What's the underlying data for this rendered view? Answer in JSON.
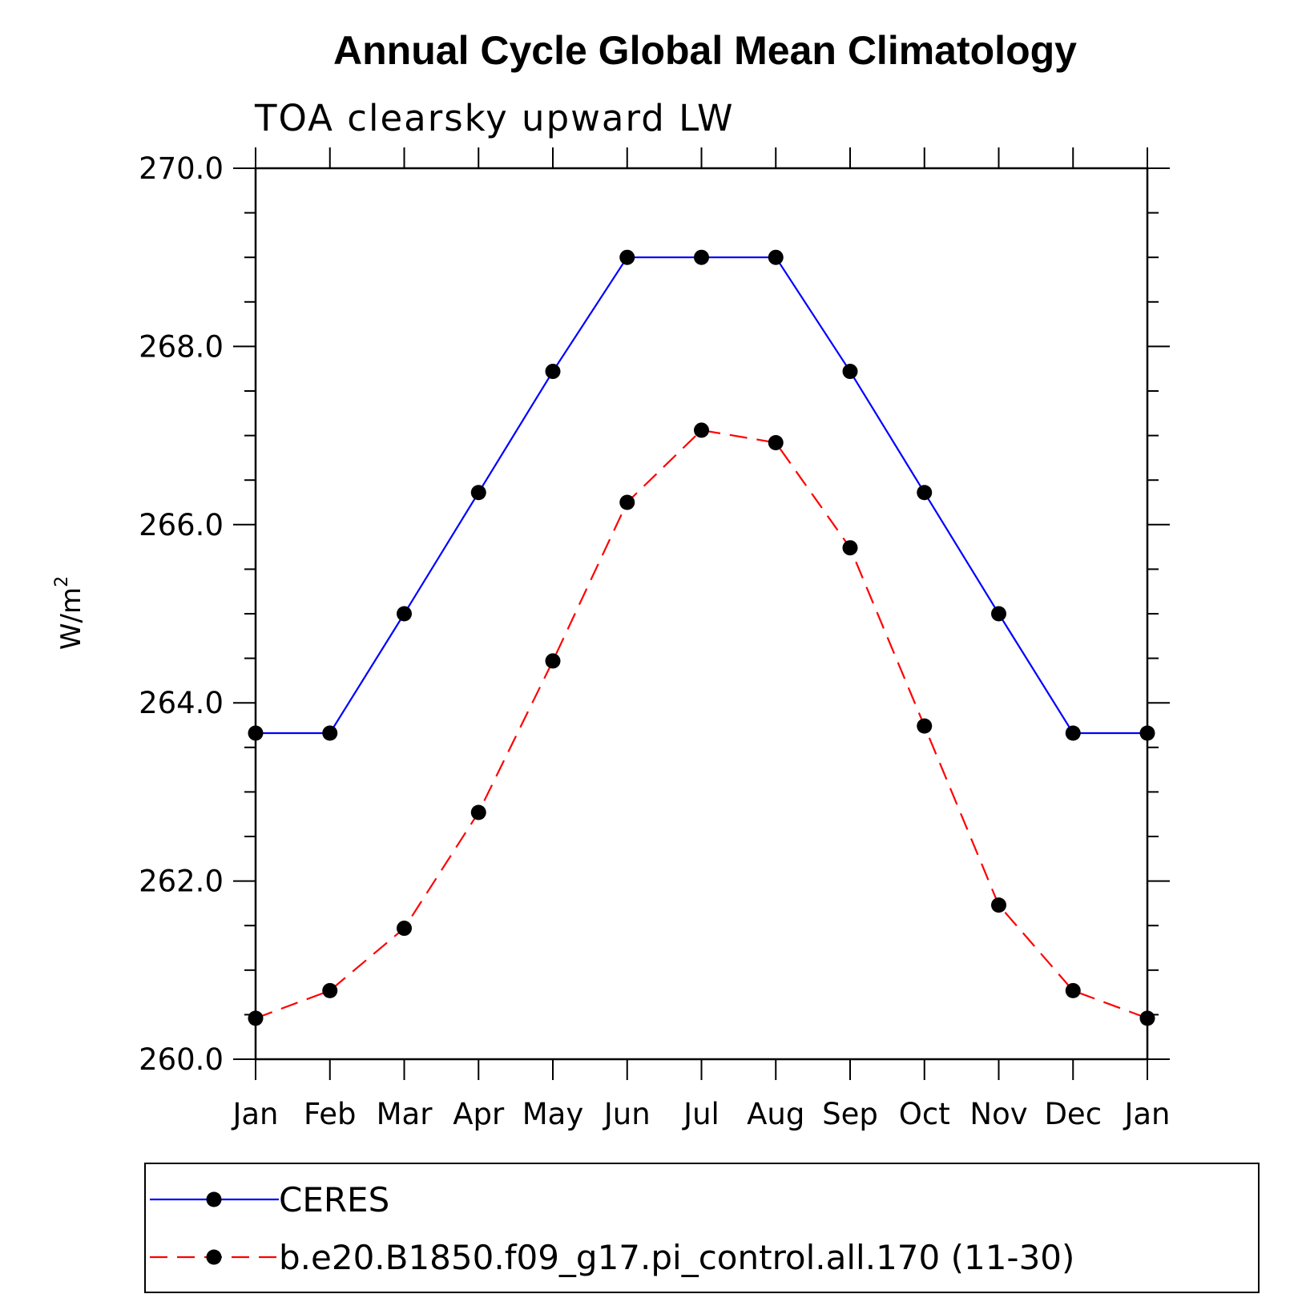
{
  "chart_data": {
    "type": "line",
    "title": "Annual Cycle Global Mean Climatology",
    "subtitle": "TOA clearsky upward LW",
    "ylabel": "W/m",
    "ylabel_superscript": "2",
    "xlabel": "",
    "categories": [
      "Jan",
      "Feb",
      "Mar",
      "Apr",
      "May",
      "Jun",
      "Jul",
      "Aug",
      "Sep",
      "Oct",
      "Nov",
      "Dec",
      "Jan"
    ],
    "ylim": [
      260.0,
      270.0
    ],
    "yticks": [
      "260.0",
      "262.0",
      "264.0",
      "266.0",
      "268.0",
      "270.0"
    ],
    "grid": false,
    "legend_position": "bottom",
    "series": [
      {
        "name": "CERES",
        "color": "#0000ff",
        "dash": "solid",
        "marker": "filled-circle",
        "values": [
          263.66,
          263.66,
          265.0,
          266.36,
          267.72,
          269.0,
          269.0,
          269.0,
          267.72,
          266.36,
          265.0,
          263.66,
          263.66
        ]
      },
      {
        "name": "b.e20.B1850.f09_g17.pi_control.all.170 (11-30)",
        "color": "#ff0000",
        "dash": "dashed",
        "marker": "filled-circle",
        "values": [
          260.46,
          260.77,
          261.47,
          262.77,
          264.47,
          266.25,
          267.06,
          266.92,
          265.74,
          263.74,
          261.73,
          260.77,
          260.46
        ]
      }
    ]
  }
}
